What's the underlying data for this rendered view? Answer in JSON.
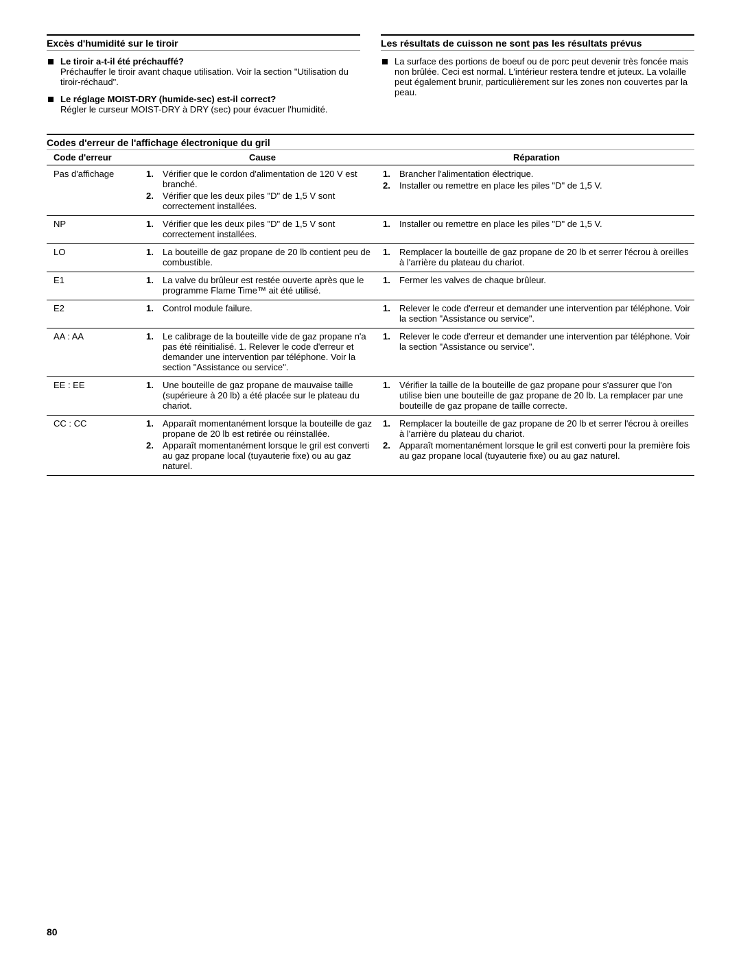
{
  "section1": {
    "title": "Excès d'humidité sur le tiroir",
    "items": [
      {
        "q": "Le tiroir a-t-il été préchauffé?",
        "a": "Préchauffer le tiroir avant chaque utilisation. Voir la section \"Utilisation du tiroir-réchaud\"."
      },
      {
        "q": "Le réglage MOIST-DRY (humide-sec) est-il correct?",
        "a": "Régler le curseur MOIST-DRY à DRY (sec) pour évacuer l'humidité."
      }
    ]
  },
  "section2": {
    "title": "Les résultats de cuisson ne sont pas les résultats prévus",
    "items": [
      {
        "q": "",
        "a": "La surface des portions de boeuf ou de porc peut devenir très foncée mais non brûlée. Ceci est normal. L'intérieur restera tendre et juteux. La volaille peut également brunir, particulièrement sur les zones non couvertes par la peau."
      }
    ]
  },
  "section3": {
    "title": "Codes d'erreur de l'affichage électronique du gril",
    "headers": {
      "code": "Code d'erreur",
      "cause": "Cause",
      "repair": "Réparation"
    },
    "rows": [
      {
        "code": "Pas d'affichage",
        "causes": [
          "Vérifier que le cordon d'alimentation de 120 V est branché.",
          "Vérifier que les deux piles \"D\" de 1,5 V sont correctement installées."
        ],
        "repairs": [
          "Brancher l'alimentation électrique.",
          "Installer ou remettre en place les piles \"D\" de 1,5 V."
        ]
      },
      {
        "code": "NP",
        "causes": [
          "Vérifier que les deux piles \"D\" de 1,5 V sont correctement installées."
        ],
        "repairs": [
          "Installer ou remettre en place les piles \"D\" de 1,5 V."
        ]
      },
      {
        "code": "LO",
        "causes": [
          "La bouteille de gaz propane de 20 lb contient peu de combustible."
        ],
        "repairs": [
          "Remplacer la bouteille de gaz propane de 20 lb et serrer l'écrou à oreilles à l'arrière du plateau du chariot."
        ]
      },
      {
        "code": "E1",
        "causes": [
          "La valve du brûleur est restée ouverte après que le programme Flame Time™ ait été utilisé."
        ],
        "repairs": [
          "Fermer les valves de chaque brûleur."
        ]
      },
      {
        "code": "E2",
        "causes": [
          "Control module failure."
        ],
        "repairs": [
          "Relever le code d'erreur et demander une intervention par téléphone. Voir la section \"Assistance ou service\"."
        ]
      },
      {
        "code": "AA : AA",
        "causes": [
          "Le calibrage de la bouteille vide de gaz propane n'a pas été réinitialisé. 1. Relever le code d'erreur et demander une intervention par téléphone. Voir la section \"Assistance ou service\"."
        ],
        "repairs": [
          "Relever le code d'erreur et demander une intervention par téléphone. Voir la section \"Assistance ou service\"."
        ]
      },
      {
        "code": "EE : EE",
        "causes": [
          "Une bouteille de gaz propane de mauvaise taille (supérieure à 20 lb) a été placée sur le plateau du chariot."
        ],
        "repairs": [
          "Vérifier la taille de la bouteille de gaz propane pour s'assurer que l'on utilise bien une bouteille de gaz propane de 20 lb. La remplacer par une bouteille de gaz propane de taille correcte."
        ]
      },
      {
        "code": "CC : CC",
        "causes": [
          "Apparaît momentanément lorsque la bouteille de gaz propane de 20 lb est retirée ou réinstallée.",
          "Apparaît momentanément lorsque le gril est converti au gaz propane local (tuyauterie fixe) ou au gaz naturel."
        ],
        "repairs": [
          "Remplacer la bouteille de gaz propane de 20 lb et serrer l'écrou à oreilles à l'arrière du plateau du chariot.",
          "Apparaît momentanément lorsque le gril est converti pour la première fois au gaz propane local (tuyauterie fixe) ou au gaz naturel."
        ]
      }
    ]
  },
  "pageNumber": "80"
}
